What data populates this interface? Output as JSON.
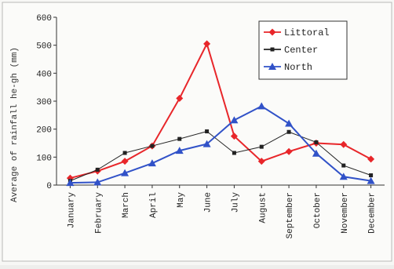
{
  "chart_data": {
    "type": "line",
    "title": "",
    "xlabel": "",
    "ylabel": "Average of rainfall he-gh (mm)",
    "ylim": [
      0,
      600
    ],
    "yticks": [
      0,
      100,
      200,
      300,
      400,
      500,
      600
    ],
    "grid": false,
    "legend_position": "top-right",
    "categories": [
      "January",
      "February",
      "March",
      "April",
      "May",
      "June",
      "July",
      "August",
      "September",
      "October",
      "November",
      "December"
    ],
    "series": [
      {
        "name": "Littoral",
        "color": "#e8262a",
        "marker": "diamond",
        "values": [
          25,
          50,
          85,
          140,
          310,
          505,
          175,
          85,
          120,
          150,
          145,
          93
        ]
      },
      {
        "name": "Center",
        "color": "#222222",
        "marker": "square",
        "values": [
          15,
          55,
          115,
          140,
          165,
          192,
          115,
          137,
          190,
          153,
          70,
          35
        ]
      },
      {
        "name": "North",
        "color": "#3152c8",
        "marker": "triangle",
        "values": [
          8,
          10,
          43,
          78,
          123,
          147,
          232,
          282,
          220,
          113,
          30,
          15
        ]
      }
    ]
  }
}
